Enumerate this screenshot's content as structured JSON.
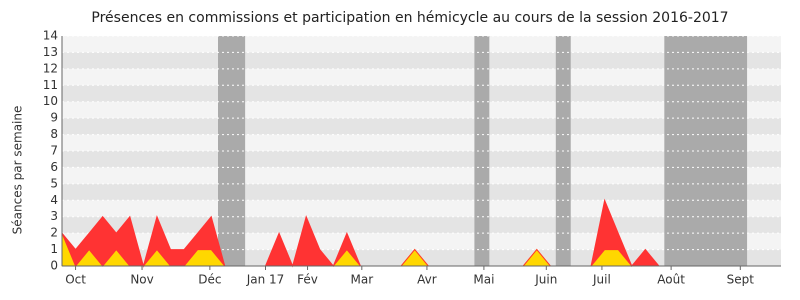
{
  "chart_data": {
    "type": "stacked-area",
    "title": "Présences en commissions et participation en hémicycle au cours de la session 2016-2017",
    "y_label": "Séances par semaine",
    "x": [
      0,
      1,
      2,
      3,
      4,
      5,
      6,
      7,
      8,
      9,
      10,
      11,
      12,
      13,
      14,
      15,
      16,
      17,
      18,
      19,
      20,
      21,
      22,
      23,
      24,
      25,
      26,
      27,
      28,
      29,
      30,
      31,
      32,
      33,
      34,
      35,
      36,
      37,
      38,
      39,
      40,
      41,
      42,
      43,
      44,
      45,
      46,
      47,
      48,
      49,
      50,
      51,
      52,
      53
    ],
    "series": [
      {
        "color": "#ffd700",
        "values": [
          2,
          0,
          1,
          0,
          1,
          0,
          0,
          1,
          0,
          0,
          1,
          1,
          0,
          0,
          0,
          0,
          0,
          0,
          0,
          0,
          0,
          1,
          0,
          0,
          0,
          0,
          1,
          0,
          0,
          0,
          0,
          0,
          0,
          0,
          0,
          1,
          0,
          0,
          0,
          0,
          1,
          1,
          0,
          0,
          0,
          0,
          0,
          0,
          0,
          0,
          0,
          0,
          0,
          0
        ]
      },
      {
        "color": "#ff3333",
        "values": [
          0,
          1,
          1,
          3,
          1,
          3,
          0,
          2,
          1,
          1,
          1,
          2,
          0,
          0,
          0,
          0,
          2,
          0,
          3,
          1,
          0,
          1,
          0,
          0,
          0,
          0,
          0,
          0,
          0,
          0,
          0,
          0,
          0,
          0,
          0,
          0,
          0,
          0,
          0,
          0,
          3,
          1,
          0,
          1,
          0,
          0,
          0,
          0,
          0,
          0,
          0,
          0,
          0,
          0
        ]
      }
    ],
    "shaded_ranges": [
      [
        11.5,
        13.5
      ],
      [
        30.4,
        31.5
      ],
      [
        36.4,
        37.5
      ],
      [
        44.4,
        50.5
      ]
    ],
    "shade_color": "#aaaaaa",
    "xlim": [
      0,
      53
    ],
    "xticks": [
      {
        "value": 1,
        "label": "Oct"
      },
      {
        "value": 5.9,
        "label": "Nov"
      },
      {
        "value": 10.9,
        "label": "Déc"
      },
      {
        "value": 15,
        "label": "Jan 17"
      },
      {
        "value": 18.1,
        "label": "Fév"
      },
      {
        "value": 22.1,
        "label": "Mar"
      },
      {
        "value": 26.9,
        "label": "Avr"
      },
      {
        "value": 31.1,
        "label": "Mai"
      },
      {
        "value": 35.7,
        "label": "Juin"
      },
      {
        "value": 39.8,
        "label": "Juil"
      },
      {
        "value": 44.9,
        "label": "Août"
      },
      {
        "value": 50,
        "label": "Sept"
      }
    ],
    "ylim": [
      0,
      14
    ],
    "yticks": [
      0,
      1,
      2,
      3,
      4,
      5,
      6,
      7,
      8,
      9,
      10,
      11,
      12,
      13,
      14
    ],
    "grid": true
  }
}
